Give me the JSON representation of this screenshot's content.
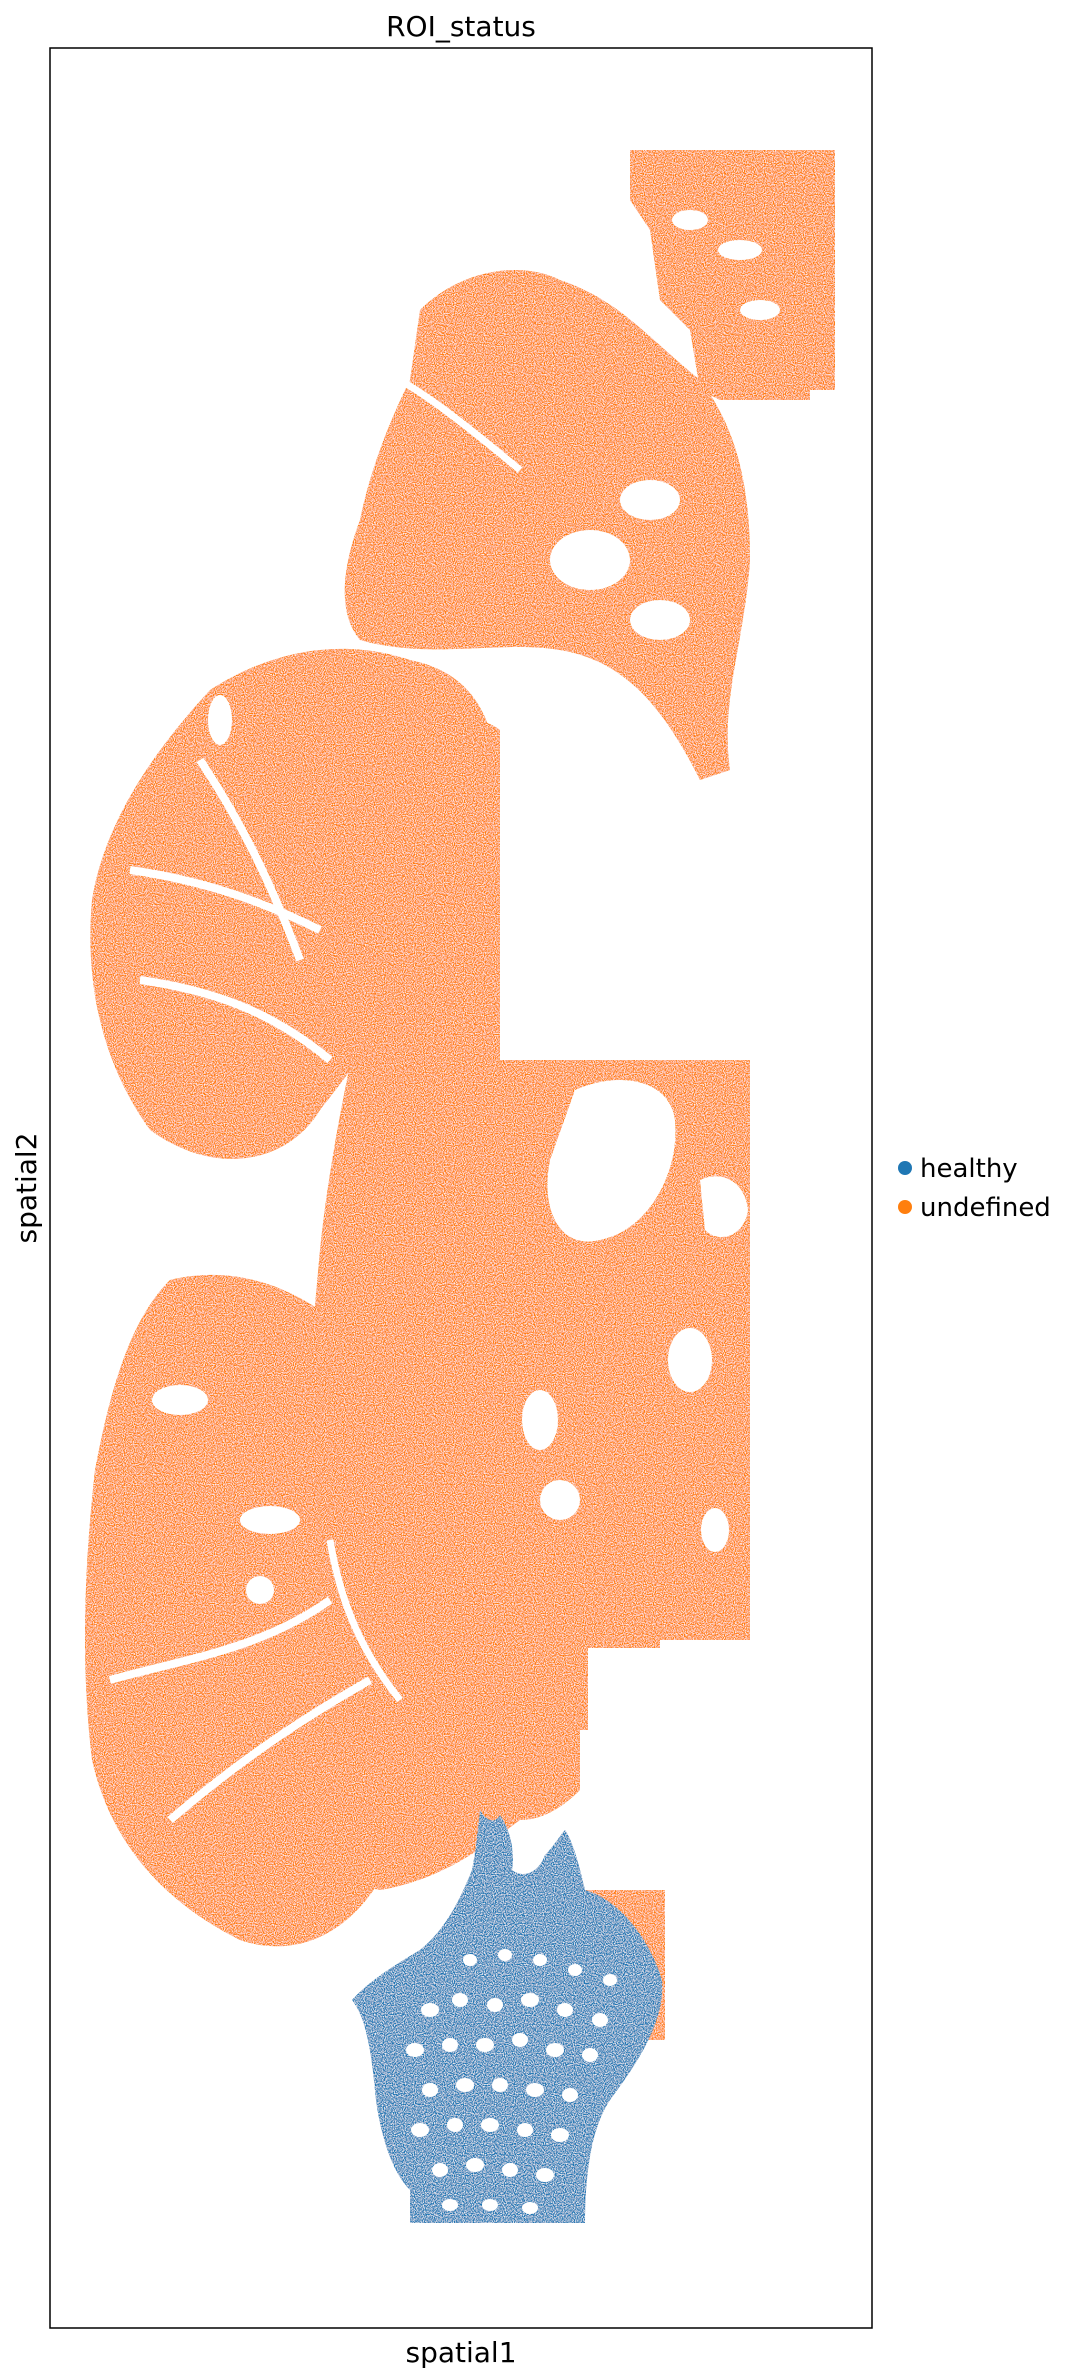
{
  "chart_data": {
    "type": "scatter",
    "title": "ROI_status",
    "xlabel": "spatial1",
    "ylabel": "spatial2",
    "grid": false,
    "legend_position": "center-right, outside plot",
    "series": [
      {
        "name": "healthy",
        "color": "#1f77b4"
      },
      {
        "name": "undefined",
        "color": "#ff7f0e"
      }
    ]
  }
}
